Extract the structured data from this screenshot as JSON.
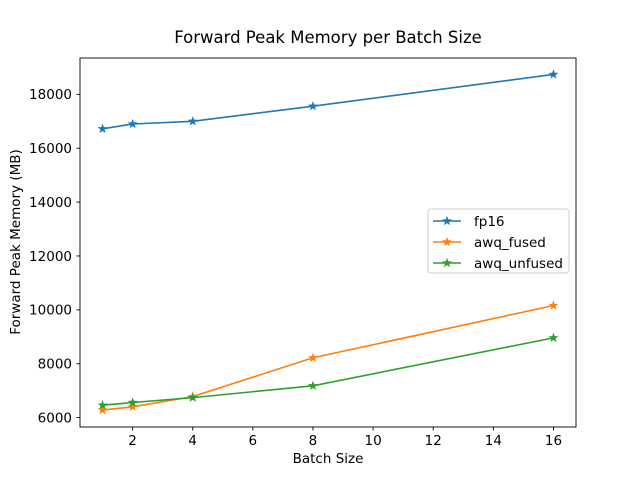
{
  "chart_data": {
    "type": "line",
    "title": "Forward Peak Memory per Batch Size",
    "xlabel": "Batch Size",
    "ylabel": "Forward Peak Memory (MB)",
    "x": [
      1,
      2,
      4,
      8,
      16
    ],
    "series": [
      {
        "name": "fp16",
        "color": "#1f77b4",
        "marker": "star",
        "values": [
          16720,
          16900,
          17000,
          17560,
          18740
        ]
      },
      {
        "name": "awq_fused",
        "color": "#ff7f0e",
        "marker": "star",
        "values": [
          6280,
          6400,
          6780,
          8220,
          10160
        ]
      },
      {
        "name": "awq_unfused",
        "color": "#2ca02c",
        "marker": "star",
        "values": [
          6460,
          6560,
          6740,
          7180,
          8960
        ]
      }
    ],
    "xlim": [
      0.25,
      16.75
    ],
    "ylim": [
      5650,
      19350
    ],
    "xticks": [
      2,
      4,
      6,
      8,
      10,
      12,
      14,
      16
    ],
    "yticks": [
      6000,
      8000,
      10000,
      12000,
      14000,
      16000,
      18000
    ],
    "grid": false,
    "legend": {
      "location": "center right",
      "entries": [
        "fp16",
        "awq_fused",
        "awq_unfused"
      ],
      "border_color": "#cccccc",
      "background": "rgba(255,255,255,0.85)"
    },
    "axis_color": "#000000",
    "background_color": "#ffffff"
  }
}
